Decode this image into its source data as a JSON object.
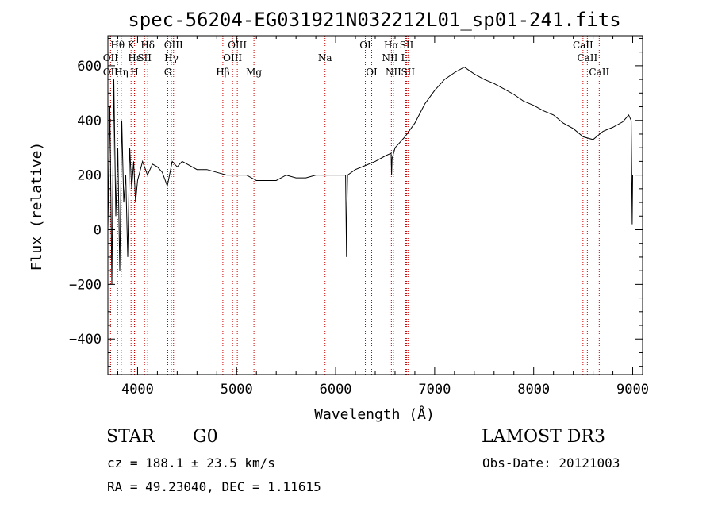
{
  "chart_data": {
    "type": "line",
    "title": "spec-56204-EG031921N032212L01_sp01-241.fits",
    "xlabel": "Wavelength (Å)",
    "ylabel": "Flux (relative)",
    "xlim": [
      3700,
      9100
    ],
    "ylim": [
      -530,
      710
    ],
    "xticks": [
      4000,
      5000,
      6000,
      7000,
      8000,
      9000
    ],
    "yticks": [
      -400,
      -200,
      0,
      200,
      400,
      600
    ],
    "series": [
      {
        "name": "flux",
        "x": [
          3700,
          3720,
          3740,
          3760,
          3780,
          3800,
          3820,
          3840,
          3860,
          3880,
          3900,
          3920,
          3940,
          3960,
          3980,
          4000,
          4050,
          4100,
          4150,
          4200,
          4250,
          4300,
          4350,
          4400,
          4450,
          4500,
          4600,
          4700,
          4800,
          4900,
          5000,
          5100,
          5200,
          5300,
          5400,
          5500,
          5600,
          5700,
          5800,
          5900,
          6000,
          6100,
          6110,
          6115,
          6120,
          6200,
          6300,
          6400,
          6500,
          6560,
          6565,
          6570,
          6600,
          6700,
          6800,
          6900,
          7000,
          7100,
          7200,
          7300,
          7400,
          7500,
          7600,
          7700,
          7800,
          7900,
          8000,
          8100,
          8200,
          8300,
          8400,
          8500,
          8600,
          8700,
          8800,
          8900,
          8960,
          8985,
          8995,
          9000
        ],
        "y": [
          0,
          450,
          -200,
          550,
          50,
          300,
          -150,
          400,
          100,
          200,
          -100,
          300,
          150,
          250,
          100,
          180,
          250,
          200,
          240,
          230,
          210,
          160,
          250,
          230,
          250,
          240,
          220,
          220,
          210,
          200,
          200,
          200,
          180,
          180,
          180,
          200,
          190,
          190,
          200,
          200,
          200,
          200,
          -100,
          100,
          200,
          220,
          235,
          250,
          270,
          280,
          200,
          260,
          300,
          340,
          390,
          460,
          510,
          550,
          575,
          595,
          570,
          550,
          535,
          515,
          495,
          470,
          455,
          435,
          420,
          390,
          370,
          340,
          330,
          360,
          375,
          395,
          420,
          400,
          20,
          200
        ]
      }
    ],
    "spectral_lines": [
      {
        "label": "Hθ",
        "x": 3798,
        "row": 1
      },
      {
        "label": "OII",
        "x": 3727,
        "row": 2
      },
      {
        "label": "OII",
        "x": 3727,
        "row": 3
      },
      {
        "label": "Hη",
        "x": 3835,
        "row": 3
      },
      {
        "label": "K",
        "x": 3934,
        "row": 1
      },
      {
        "label": "Hε",
        "x": 3970,
        "row": 2
      },
      {
        "label": "H",
        "x": 3968,
        "row": 3
      },
      {
        "label": "Hδ",
        "x": 4102,
        "row": 1
      },
      {
        "label": "SII",
        "x": 4070,
        "row": 2
      },
      {
        "label": "OIII",
        "x": 4363,
        "row": 1
      },
      {
        "label": "Hγ",
        "x": 4341,
        "row": 2
      },
      {
        "label": "G",
        "x": 4305,
        "row": 3
      },
      {
        "label": "Hβ",
        "x": 4861,
        "row": 3
      },
      {
        "label": "OIII",
        "x": 5007,
        "row": 1
      },
      {
        "label": "OIII",
        "x": 4959,
        "row": 2
      },
      {
        "label": "Mg",
        "x": 5175,
        "row": 3
      },
      {
        "label": "Na",
        "x": 5893,
        "row": 2
      },
      {
        "label": "OI",
        "x": 6300,
        "row": 1
      },
      {
        "label": "OI",
        "x": 6364,
        "row": 3
      },
      {
        "label": "Hα",
        "x": 6563,
        "row": 1
      },
      {
        "label": "SII",
        "x": 6717,
        "row": 1
      },
      {
        "label": "NII",
        "x": 6548,
        "row": 2
      },
      {
        "label": "Li",
        "x": 6708,
        "row": 2
      },
      {
        "label": "NII",
        "x": 6583,
        "row": 3
      },
      {
        "label": "SII",
        "x": 6731,
        "row": 3
      },
      {
        "label": "CaII",
        "x": 8498,
        "row": 1
      },
      {
        "label": "CaII",
        "x": 8542,
        "row": 2
      },
      {
        "label": "CaII",
        "x": 8662,
        "row": 3
      }
    ]
  },
  "info": {
    "object_class": "STAR",
    "subclass": "G0",
    "survey": "LAMOST DR3",
    "cz": "cz = 188.1 ± 23.5 km/s",
    "obs_date": "Obs-Date: 20121003",
    "coords": "RA =  49.23040, DEC =   1.11615"
  },
  "colors": {
    "line_marker": "#cc0000",
    "spectrum": "#000000"
  }
}
